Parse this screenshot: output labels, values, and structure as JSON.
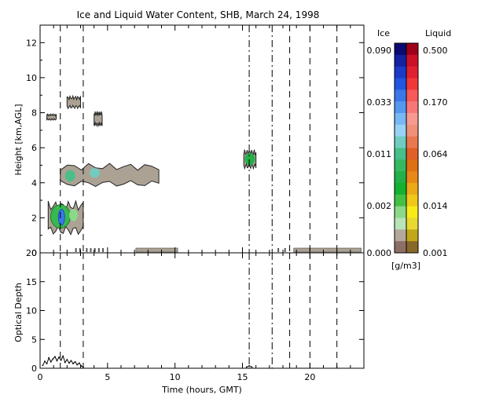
{
  "chart_data": [
    {
      "type": "heatmap",
      "title": "Ice and Liquid Water Content, SHB, March 24, 1998",
      "xlabel": "",
      "ylabel": "Height [km,AGL]",
      "xlim": [
        0,
        24
      ],
      "ylim": [
        0,
        13
      ],
      "yticks": [
        0,
        2,
        4,
        6,
        8,
        10,
        12
      ],
      "tick_labels_y": [
        "0",
        "2",
        "4",
        "6",
        "8",
        "10",
        "12"
      ],
      "vertical_markers": {
        "dashed": [
          1.5,
          3.2,
          18.5,
          20.0,
          22.0
        ],
        "dash_dot": [
          15.5,
          17.2
        ]
      },
      "cloud_regions": [
        {
          "name": "high-cloud-left",
          "x": [
            0.5,
            1.2
          ],
          "y": [
            7.6,
            7.9
          ],
          "phase": "ice"
        },
        {
          "name": "high-cloud-a",
          "x": [
            2.0,
            3.0
          ],
          "y": [
            8.3,
            8.9
          ],
          "phase": "ice"
        },
        {
          "name": "high-cloud-b",
          "x": [
            4.0,
            4.6
          ],
          "y": [
            7.3,
            8.0
          ],
          "phase": "ice"
        },
        {
          "name": "mid-cloud-layer",
          "x": [
            1.5,
            8.8
          ],
          "y": [
            3.9,
            5.0
          ],
          "phase": "mixed"
        },
        {
          "name": "low-cloud",
          "x": [
            0.6,
            3.2
          ],
          "y": [
            1.2,
            2.8
          ],
          "phase": "mixed"
        },
        {
          "name": "isolated-cloud",
          "x": [
            15.1,
            16.0
          ],
          "y": [
            4.9,
            5.8
          ],
          "phase": "ice"
        }
      ],
      "colorbars": [
        {
          "label": "Ice",
          "ticks": [
            "0.090",
            "0.033",
            "0.011",
            "0.002",
            "0.000"
          ]
        },
        {
          "label": "Liquid",
          "ticks": [
            "0.500",
            "0.170",
            "0.064",
            "0.014",
            "0.001"
          ]
        }
      ],
      "colorbar_unit": "[g/m3]",
      "ice_colors": [
        "#0a0a70",
        "#1222a0",
        "#1a3ac8",
        "#2255e0",
        "#3a78ea",
        "#5598f0",
        "#78b8f4",
        "#98d2f4",
        "#70ccc0",
        "#48be88",
        "#36b860",
        "#24b048",
        "#14b030",
        "#44c044",
        "#8ad888",
        "#b8e4b8",
        "#b4a89c",
        "#8c7068"
      ],
      "liquid_colors": [
        "#a00018",
        "#cc1028",
        "#e02030",
        "#f03838",
        "#f85858",
        "#f87878",
        "#f89a90",
        "#f09078",
        "#e87850",
        "#e06028",
        "#e07014",
        "#e88818",
        "#ecaa18",
        "#f0c818",
        "#f8ec18",
        "#e8d830",
        "#c0a818",
        "#886828"
      ]
    },
    {
      "type": "line",
      "title": "",
      "xlabel": "Time (hours, GMT)",
      "ylabel": "Optical Depth",
      "xlim": [
        0,
        24
      ],
      "ylim": [
        0,
        20
      ],
      "xticks": [
        0,
        5,
        10,
        15,
        20
      ],
      "tick_labels_x": [
        "0",
        "5",
        "10",
        "15",
        "20"
      ],
      "yticks": [
        0,
        5,
        10,
        15,
        20
      ],
      "tick_labels_y": [
        "0",
        "5",
        "10",
        "15",
        "20"
      ],
      "series": [
        {
          "x": [
            0.2,
            0.35,
            0.5,
            0.65,
            0.8,
            0.95,
            1.1,
            1.25,
            1.4,
            1.55,
            1.7,
            1.85,
            2.0,
            2.15,
            2.3,
            2.45,
            2.6,
            2.75,
            2.9,
            3.05,
            3.2,
            15.3,
            15.5,
            15.7
          ],
          "values": [
            0.5,
            1.2,
            0.8,
            1.8,
            1.1,
            1.6,
            2.0,
            1.3,
            1.9,
            1.4,
            2.1,
            1.0,
            1.5,
            0.9,
            1.3,
            0.8,
            1.1,
            0.6,
            0.9,
            0.4,
            0.2,
            0.2,
            0.4,
            0.2
          ]
        }
      ],
      "vertical_markers": {
        "dashed": [
          1.5,
          3.2,
          18.5,
          20.0,
          22.0
        ],
        "dash_dot": [
          15.5,
          17.2
        ]
      }
    }
  ]
}
